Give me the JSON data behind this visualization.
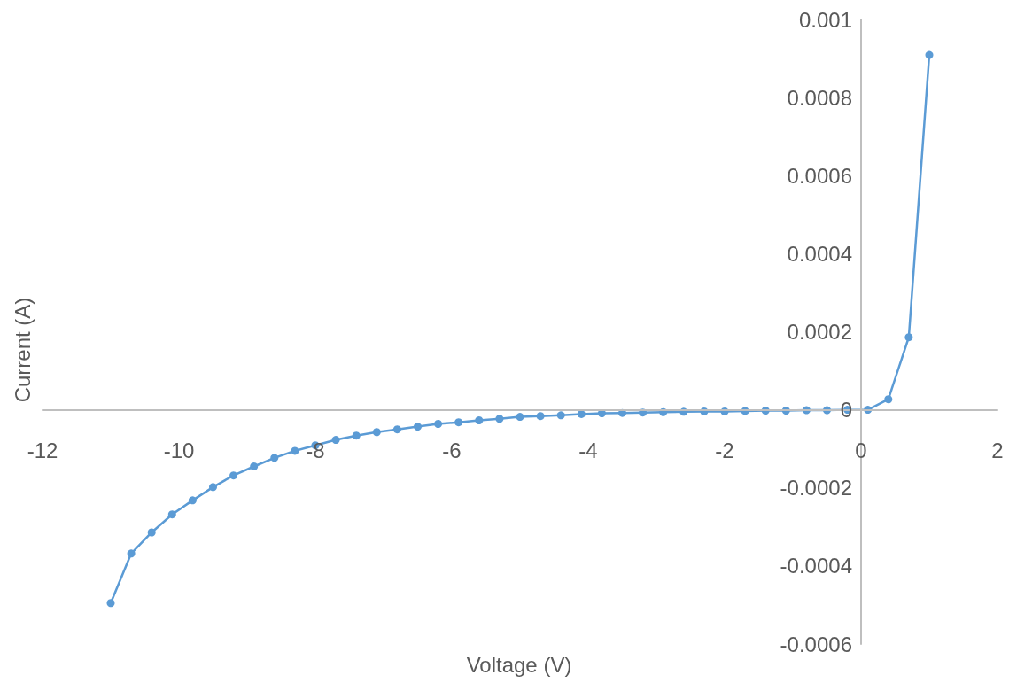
{
  "chart_data": {
    "type": "line",
    "xlabel": "Voltage (V)",
    "ylabel": "Current (A)",
    "xlim": [
      -12,
      2
    ],
    "xticks": [
      -12,
      -10,
      -8,
      -6,
      -4,
      -2,
      0,
      2
    ],
    "ylim": [
      -0.0006,
      0.001
    ],
    "yticks": [
      -0.0006,
      -0.0004,
      -0.0002,
      0,
      0.0002,
      0.0004,
      0.0006,
      0.0008,
      0.001
    ],
    "grid": false,
    "marker": "circle",
    "line_style": "solid",
    "series": [
      {
        "color": "#5b9bd5",
        "x": [
          -11,
          -10.7,
          -10.4,
          -10.1,
          -9.8,
          -9.5,
          -9.2,
          -8.9,
          -8.6,
          -8.3,
          -8,
          -7.7,
          -7.4,
          -7.1,
          -6.8,
          -6.5,
          -6.2,
          -5.9,
          -5.6,
          -5.3,
          -5,
          -4.7,
          -4.4,
          -4.1,
          -3.8,
          -3.5,
          -3.2,
          -2.9,
          -2.6,
          -2.3,
          -2,
          -1.7,
          -1.4,
          -1.1,
          -0.8,
          -0.5,
          -0.2,
          0.1,
          0.4,
          0.7,
          1
        ],
        "values": [
          -0.000495,
          -0.000368,
          -0.000314,
          -0.000268,
          -0.000232,
          -0.000198,
          -0.000168,
          -0.000145,
          -0.000123,
          -0.000105,
          -9.1e-05,
          -7.7e-05,
          -6.6e-05,
          -5.7e-05,
          -5e-05,
          -4.3e-05,
          -3.6e-05,
          -3.2e-05,
          -2.7e-05,
          -2.3e-05,
          -1.8e-05,
          -1.6e-05,
          -1.4e-05,
          -1.1e-05,
          -9e-06,
          -8e-06,
          -7e-06,
          -6e-06,
          -5e-06,
          -4e-06,
          -4e-06,
          -3e-06,
          -2e-06,
          -2e-06,
          -1e-06,
          -1e-06,
          0,
          0,
          2.7e-05,
          0.000186,
          0.000909
        ]
      }
    ]
  }
}
